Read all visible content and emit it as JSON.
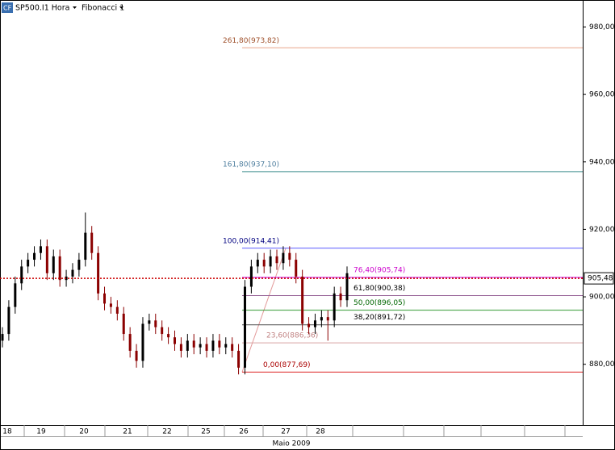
{
  "chart_data": {
    "type": "candlestick",
    "title": "SP500.I1 Hora",
    "study": "Fibonacci 1",
    "x_label": "Maio 2009",
    "dates": [
      "18",
      "19",
      "20",
      "21",
      "22",
      "25",
      "26",
      "27",
      "28"
    ],
    "candles": {
      "open": [
        887,
        889,
        897,
        904,
        909,
        911,
        913,
        915,
        907,
        912,
        905,
        906,
        908,
        911,
        919,
        913,
        901,
        898,
        897,
        895,
        889,
        884,
        881,
        892,
        893,
        891,
        889,
        888,
        886,
        884,
        887,
        885,
        886,
        884,
        887,
        885,
        886,
        884,
        879,
        903,
        909,
        911,
        909,
        912,
        910,
        913,
        911,
        906,
        892,
        891,
        893,
        894,
        893,
        901,
        899
      ],
      "high": [
        891,
        899,
        906,
        911,
        913,
        915,
        917,
        917,
        914,
        914,
        908,
        910,
        913,
        925,
        921,
        915,
        903,
        900,
        899,
        897,
        891,
        886,
        894,
        895,
        895,
        893,
        891,
        890,
        888,
        889,
        889,
        888,
        888,
        889,
        889,
        888,
        888,
        886,
        905,
        911,
        913,
        913,
        914,
        914,
        915,
        915,
        913,
        908,
        894,
        895,
        896,
        896,
        903,
        903,
        909
      ],
      "low": [
        885,
        887,
        895,
        902,
        907,
        909,
        911,
        905,
        905,
        903,
        903,
        904,
        906,
        909,
        911,
        899,
        896,
        895,
        893,
        887,
        882,
        879,
        879,
        890,
        889,
        887,
        886,
        884,
        882,
        882,
        883,
        883,
        882,
        882,
        883,
        883,
        882,
        877,
        877,
        901,
        907,
        907,
        907,
        908,
        908,
        909,
        904,
        890,
        889,
        889,
        891,
        887,
        891,
        897,
        897
      ],
      "close": [
        889,
        897,
        904,
        909,
        911,
        913,
        915,
        907,
        912,
        905,
        906,
        908,
        911,
        919,
        913,
        901,
        898,
        897,
        895,
        889,
        884,
        881,
        892,
        893,
        891,
        889,
        888,
        886,
        884,
        887,
        885,
        886,
        884,
        887,
        885,
        886,
        884,
        879,
        903,
        909,
        911,
        909,
        912,
        910,
        913,
        911,
        906,
        892,
        891,
        893,
        894,
        893,
        901,
        899,
        907
      ],
      "up_color": "#000000",
      "down_color": "#8b0000"
    },
    "last_price": {
      "value": 905.48,
      "label": "905,48",
      "color": "#cc0000"
    },
    "fibonacci": [
      {
        "label": "261,80(973,82)",
        "value": 973.82,
        "color": "#e8a58a",
        "text_color": "#a0522d"
      },
      {
        "label": "161,80(937,10)",
        "value": 937.1,
        "color": "#3f8f8f",
        "text_color": "#4f7f9f"
      },
      {
        "label": "100,00(914,41)",
        "value": 914.41,
        "color": "#5a5aff",
        "text_color": "#000080"
      },
      {
        "label": "76,40(905,74)",
        "value": 905.74,
        "color": "#cc00cc",
        "text_color": "#cc00cc"
      },
      {
        "label": "61,80(900,38)",
        "value": 900.38,
        "color": "#996699",
        "text_color": "#000000"
      },
      {
        "label": "50,00(896,05)",
        "value": 896.05,
        "color": "#339933",
        "text_color": "#006600"
      },
      {
        "label": "38,20(891,72)",
        "value": 891.72,
        "color": "#555555",
        "text_color": "#000000"
      },
      {
        "label": "23,60(886,36)",
        "value": 886.36,
        "color": "#d8a0a0",
        "text_color": "#c08080"
      },
      {
        "label": "0,00(877,69)",
        "value": 877.69,
        "color": "#dd2222",
        "text_color": "#aa0000"
      }
    ],
    "ylim": [
      862,
      988
    ],
    "yticks": [
      {
        "value": 880,
        "label": "880,00"
      },
      {
        "value": 900,
        "label": "900,00"
      },
      {
        "value": 920,
        "label": "920,00"
      },
      {
        "value": 940,
        "label": "940,00"
      },
      {
        "value": 960,
        "label": "960,00"
      },
      {
        "value": 980,
        "label": "980,00"
      }
    ]
  }
}
